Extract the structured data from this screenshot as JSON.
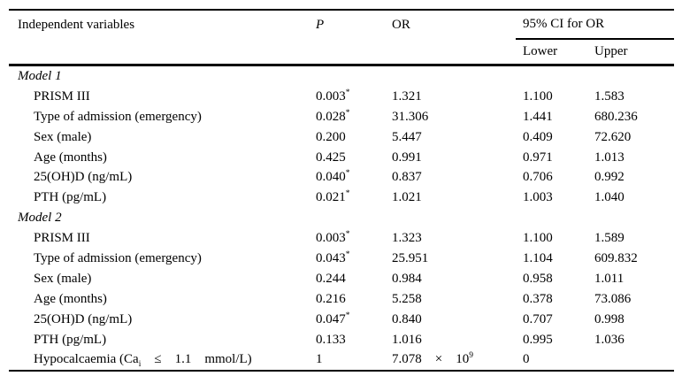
{
  "table": {
    "header": {
      "variables": "Independent variables",
      "p": "P",
      "or": "OR",
      "ci": "95% CI for OR",
      "lower": "Lower",
      "upper": "Upper"
    },
    "rows": [
      {
        "kind": "section",
        "label": "Model 1"
      },
      {
        "kind": "data",
        "label": "PRISM III",
        "p": "0.003",
        "p_note": "*",
        "or": "1.321",
        "lower": "1.100",
        "upper": "1.583"
      },
      {
        "kind": "data",
        "label": "Type of admission (emergency)",
        "p": "0.028",
        "p_note": "*",
        "or": "31.306",
        "lower": "1.441",
        "upper": "680.236"
      },
      {
        "kind": "data",
        "label": "Sex (male)",
        "p": "0.200",
        "or": "5.447",
        "lower": "0.409",
        "upper": "72.620"
      },
      {
        "kind": "data",
        "label": "Age (months)",
        "p": "0.425",
        "or": "0.991",
        "lower": "0.971",
        "upper": "1.013"
      },
      {
        "kind": "data",
        "label": "25(OH)D (ng/mL)",
        "p": "0.040",
        "p_note": "*",
        "or": "0.837",
        "lower": "0.706",
        "upper": "0.992"
      },
      {
        "kind": "data",
        "label": "PTH (pg/mL)",
        "p": "0.021",
        "p_note": "*",
        "or": "1.021",
        "lower": "1.003",
        "upper": "1.040"
      },
      {
        "kind": "section",
        "label": "Model 2"
      },
      {
        "kind": "data",
        "label": "PRISM III",
        "p": "0.003",
        "p_note": "*",
        "or": "1.323",
        "lower": "1.100",
        "upper": "1.589"
      },
      {
        "kind": "data",
        "label": "Type of admission (emergency)",
        "p": "0.043",
        "p_note": "*",
        "or": "25.951",
        "lower": "1.104",
        "upper": "609.832"
      },
      {
        "kind": "data",
        "label": "Sex (male)",
        "p": "0.244",
        "or": "0.984",
        "lower": "0.958",
        "upper": "1.011"
      },
      {
        "kind": "data",
        "label": "Age (months)",
        "p": "0.216",
        "or": "5.258",
        "lower": "0.378",
        "upper": "73.086"
      },
      {
        "kind": "data",
        "label": "25(OH)D (ng/mL)",
        "p": "0.047",
        "p_note": "*",
        "or": "0.840",
        "lower": "0.707",
        "upper": "0.998"
      },
      {
        "kind": "data",
        "label": "PTH (pg/mL)",
        "p": "0.133",
        "or": "1.016",
        "lower": "0.995",
        "upper": "1.036"
      },
      {
        "kind": "data",
        "label": "Hypocalcaemia (Ca",
        "label_sub": "i",
        "label_rest": "    ≤    1.1    mmol/L)",
        "p": "1",
        "or": "7.078    ×    10",
        "or_sup": "9",
        "lower": "0",
        "upper": ""
      }
    ]
  }
}
